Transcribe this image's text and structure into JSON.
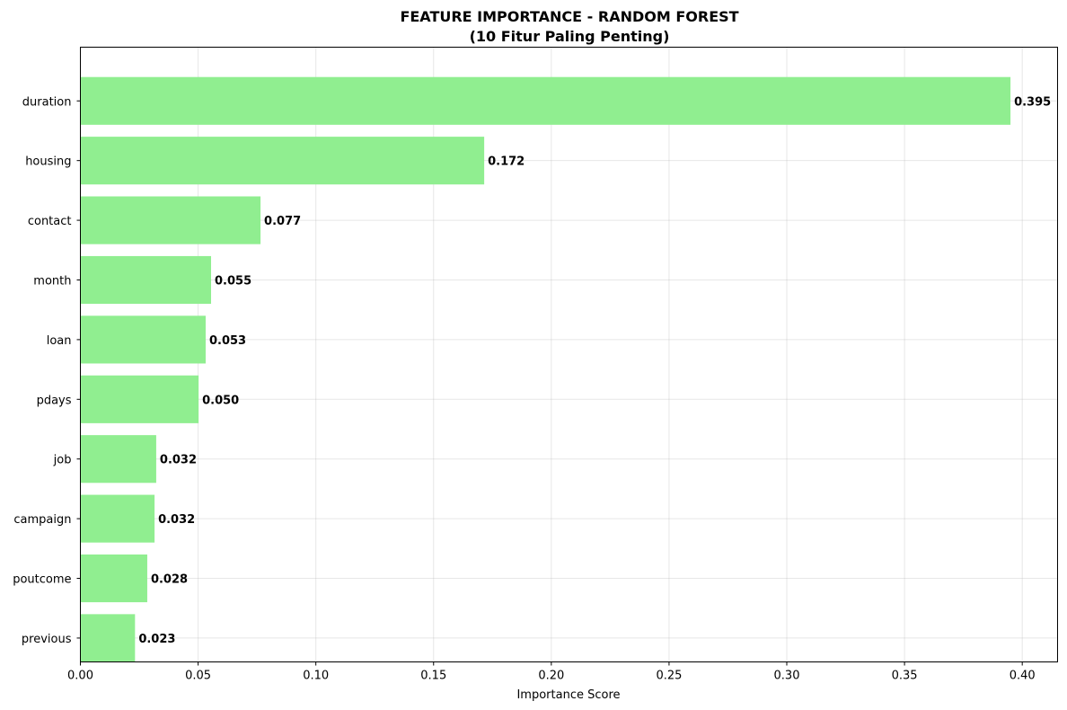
{
  "chart_data": {
    "type": "bar",
    "orientation": "horizontal",
    "title_line1": "FEATURE IMPORTANCE - RANDOM FOREST",
    "title_line2": "(10 Fitur Paling Penting)",
    "xlabel": "Importance Score",
    "ylabel": "",
    "categories": [
      "duration",
      "housing",
      "contact",
      "month",
      "loan",
      "pdays",
      "job",
      "campaign",
      "poutcome",
      "previous"
    ],
    "values": [
      0.395,
      0.1715,
      0.0765,
      0.0555,
      0.0532,
      0.0502,
      0.0322,
      0.0315,
      0.0284,
      0.0232
    ],
    "value_labels": [
      "0.395",
      "0.172",
      "0.077",
      "0.055",
      "0.053",
      "0.050",
      "0.032",
      "0.032",
      "0.028",
      "0.023"
    ],
    "xlim": [
      0,
      0.415
    ],
    "xticks": [
      0.0,
      0.05,
      0.1,
      0.15,
      0.2,
      0.25,
      0.3,
      0.35,
      0.4
    ],
    "xtick_labels": [
      "0.00",
      "0.05",
      "0.10",
      "0.15",
      "0.20",
      "0.25",
      "0.30",
      "0.35",
      "0.40"
    ],
    "grid": true,
    "bar_color": "#90ee90"
  }
}
